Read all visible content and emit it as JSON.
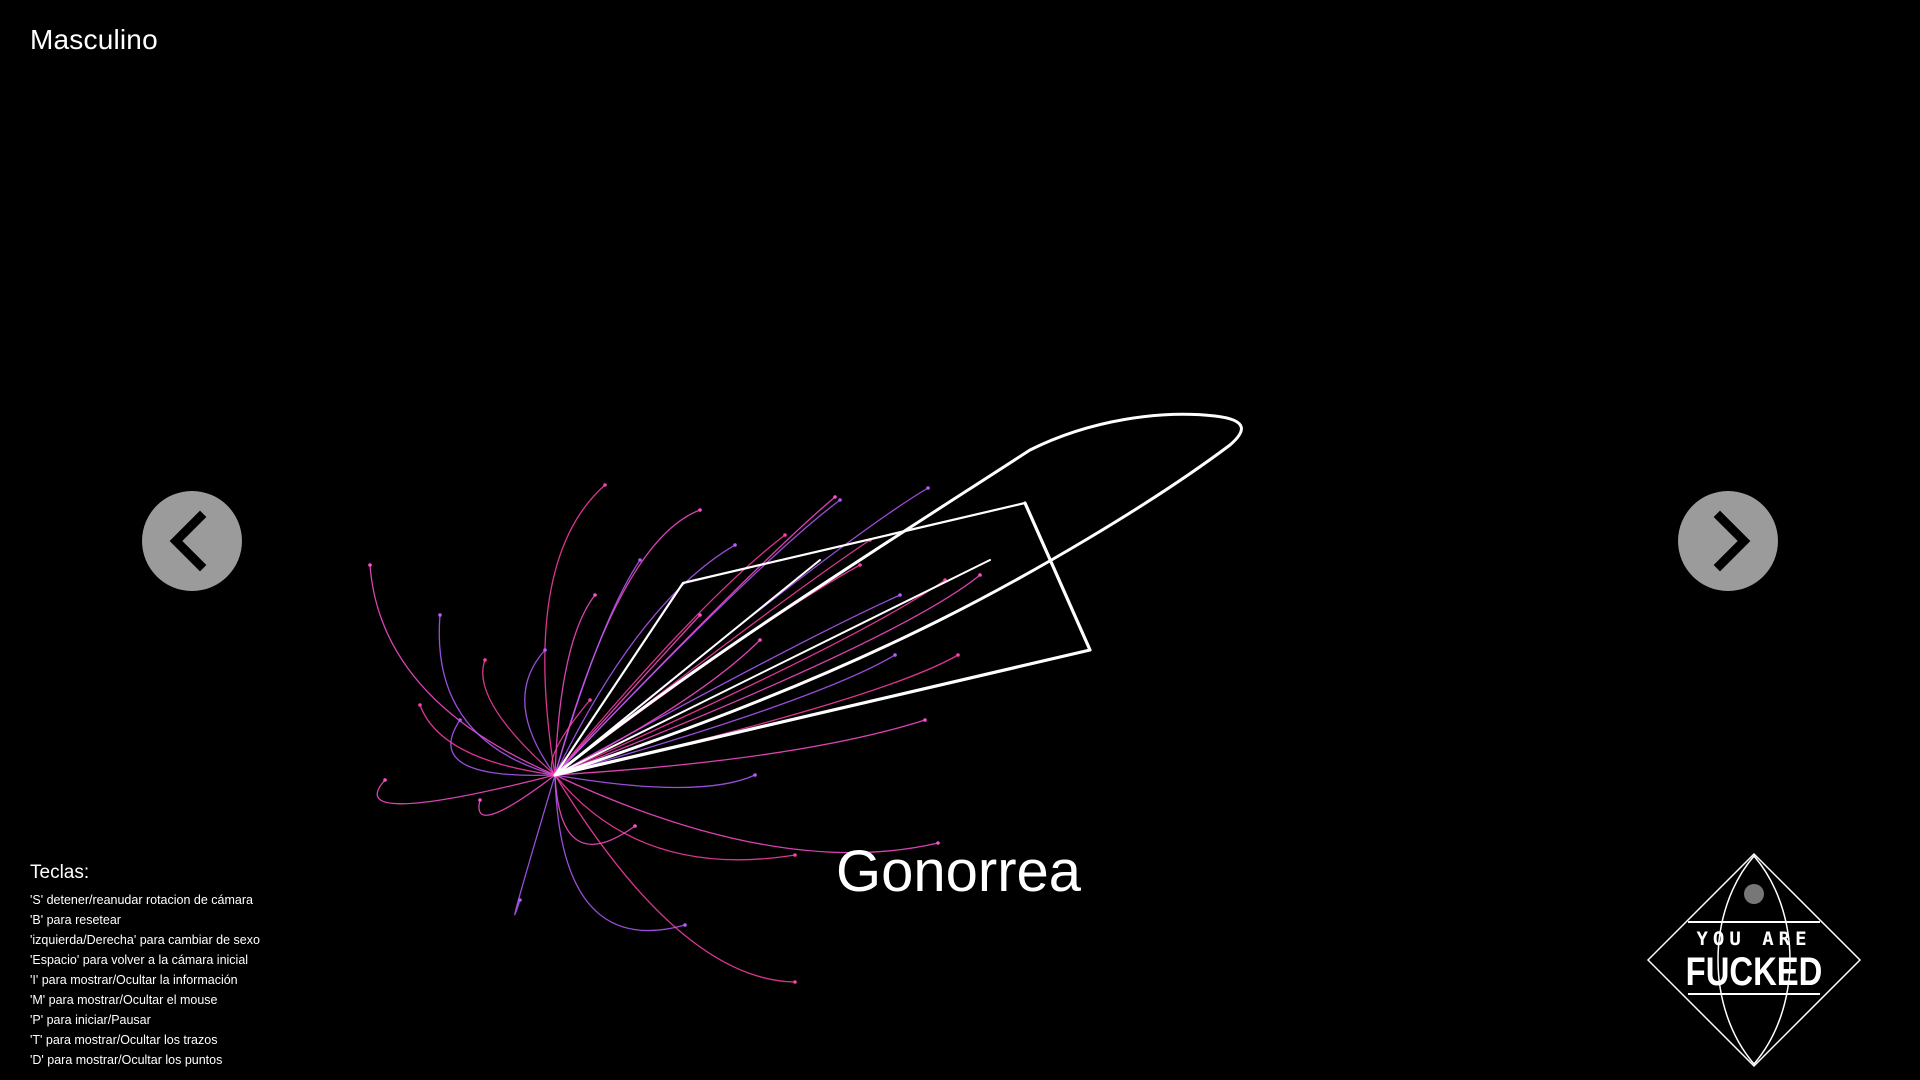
{
  "app": {
    "sex_label": "Masculino",
    "disease_name": "Gonorrea"
  },
  "controls": {
    "prev_icon": "chevron-left-icon",
    "next_icon": "chevron-right-icon",
    "button_color": "#9b9b9b"
  },
  "keys": {
    "title": "Teclas:",
    "items": [
      "'S' detener/reanudar rotacion de cámara",
      "'B' para resetear",
      "'izquierda/Derecha' para cambiar de sexo",
      "'Espacio' para volver a la cámara inicial",
      "'I' para mostrar/Ocultar la información",
      "'M' para mostrar/Ocultar el mouse",
      "'P' para iniciar/Pausar",
      "'T' para mostrar/Ocultar los trazos",
      "'D' para mostrar/Ocultar los puntos"
    ]
  },
  "logo": {
    "top_text": "YOU ARE",
    "main_text": "FUCKED"
  },
  "colors": {
    "background": "#000000",
    "trail_pink": "#ff4fd0",
    "trail_violet": "#b45cff",
    "trail_magenta": "#ff3fa8",
    "shape": "#ffffff"
  }
}
